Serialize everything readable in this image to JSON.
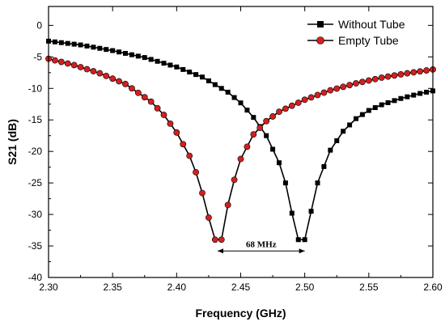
{
  "chart_data": {
    "type": "line",
    "xlabel": "Frequency (GHz)",
    "ylabel": "S21 (dB)",
    "xlim": [
      2.3,
      2.6
    ],
    "ylim": [
      -40,
      3
    ],
    "x_ticks": [
      "2.30",
      "2.35",
      "2.40",
      "2.45",
      "2.50",
      "2.55",
      "2.60"
    ],
    "y_ticks": [
      "0",
      "-5",
      "-10",
      "-15",
      "-20",
      "-25",
      "-30",
      "-35",
      "-40"
    ],
    "legend_position": "top-right",
    "series": [
      {
        "name": "Without Tube",
        "color": "#000000",
        "marker": "square",
        "x": [
          2.3,
          2.325,
          2.35,
          2.375,
          2.4,
          2.42,
          2.44,
          2.45,
          2.46,
          2.47,
          2.48,
          2.485,
          2.49,
          2.495,
          2.5,
          2.505,
          2.51,
          2.52,
          2.53,
          2.54,
          2.55,
          2.56,
          2.575,
          2.59,
          2.6
        ],
        "y": [
          -2.5,
          -3.1,
          -4.0,
          -5.1,
          -6.6,
          -8.2,
          -10.6,
          -12.3,
          -14.6,
          -17.5,
          -21.8,
          -25.0,
          -29.8,
          -34.0,
          -34.0,
          -29.5,
          -25.0,
          -19.8,
          -16.8,
          -14.8,
          -13.5,
          -12.6,
          -11.6,
          -10.8,
          -10.4
        ]
      },
      {
        "name": "Empty Tube",
        "color": "#d41f1f",
        "marker": "circle",
        "x": [
          2.3,
          2.32,
          2.34,
          2.36,
          2.38,
          2.39,
          2.4,
          2.41,
          2.415,
          2.42,
          2.425,
          2.43,
          2.435,
          2.44,
          2.445,
          2.45,
          2.46,
          2.47,
          2.48,
          2.5,
          2.52,
          2.54,
          2.56,
          2.58,
          2.6
        ],
        "y": [
          -5.3,
          -6.3,
          -7.6,
          -9.3,
          -12.1,
          -14.2,
          -17.0,
          -20.7,
          -23.3,
          -26.6,
          -30.5,
          -34.0,
          -34.0,
          -28.5,
          -24.5,
          -21.2,
          -17.3,
          -15.2,
          -13.7,
          -11.8,
          -10.3,
          -9.2,
          -8.3,
          -7.6,
          -7.0
        ]
      }
    ],
    "annotation": {
      "text": "68 MHz",
      "x_start": 2.432,
      "x_end": 2.5,
      "y": -35.8
    }
  }
}
